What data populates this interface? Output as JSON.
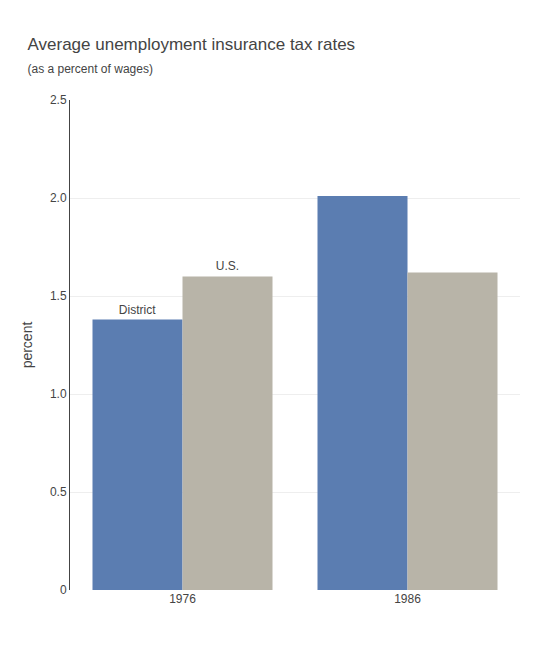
{
  "chart_data": {
    "type": "bar",
    "title": "Average unemployment insurance tax rates",
    "subtitle": "(as a percent of wages)",
    "ylabel": "percent",
    "categories": [
      "1976",
      "1986"
    ],
    "series": [
      {
        "name": "District",
        "color": "#5B7DB1",
        "values": [
          1.38,
          2.01
        ]
      },
      {
        "name": "U.S.",
        "color": "#B8B4A8",
        "values": [
          1.6,
          1.62
        ]
      }
    ],
    "ylim": [
      0,
      2.5
    ],
    "yticks": [
      0,
      0.5,
      {
        "value": 1,
        "label": "1.0"
      },
      1.5,
      {
        "value": 2,
        "label": "2.0"
      },
      2.5
    ],
    "grid": true
  }
}
